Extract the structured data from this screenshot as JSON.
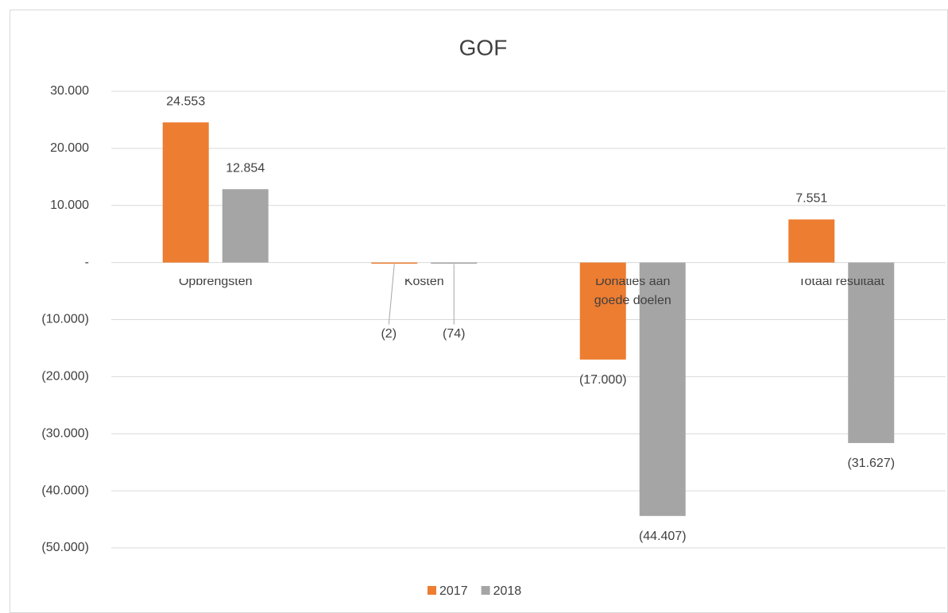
{
  "chart_data": {
    "type": "bar",
    "title": "GOF",
    "categories": [
      "Opbrengsten",
      "Kosten",
      "Donaties aan goede doelen",
      "Totaal resultaat"
    ],
    "series": [
      {
        "name": "2017",
        "color": "#ed7d31",
        "values": [
          24553,
          -2,
          -17000,
          7551
        ],
        "value_labels": [
          "24.553",
          "(2)",
          "(17.000)",
          "7.551"
        ]
      },
      {
        "name": "2018",
        "color": "#a5a5a5",
        "values": [
          12854,
          -74,
          -44407,
          -31627
        ],
        "value_labels": [
          "12.854",
          "(74)",
          "(44.407)",
          "(31.627)"
        ]
      }
    ],
    "ylim": [
      -50000,
      30000
    ],
    "yticks": [
      {
        "value": 30000,
        "label": "30.000"
      },
      {
        "value": 20000,
        "label": "20.000"
      },
      {
        "value": 10000,
        "label": "10.000"
      },
      {
        "value": 0,
        "label": "-"
      },
      {
        "value": -10000,
        "label": "(10.000)"
      },
      {
        "value": -20000,
        "label": "(20.000)"
      },
      {
        "value": -30000,
        "label": "(30.000)"
      },
      {
        "value": -40000,
        "label": "(40.000)"
      },
      {
        "value": -50000,
        "label": "(50.000)"
      }
    ],
    "grid": true,
    "legend": "bottom"
  }
}
